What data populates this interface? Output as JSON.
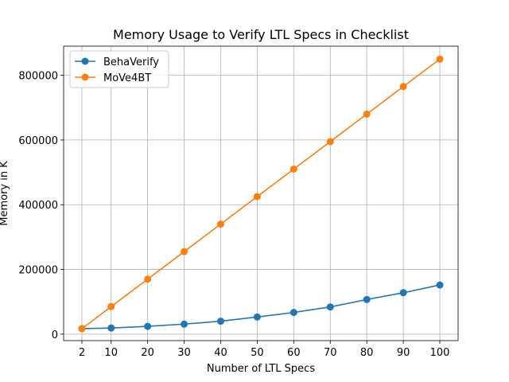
{
  "chart_data": {
    "type": "line",
    "title": "Memory Usage to Verify LTL Specs in Checklist",
    "xlabel": "Number of LTL Specs",
    "ylabel": "Memory in K",
    "x": [
      2,
      10,
      20,
      30,
      40,
      50,
      60,
      70,
      80,
      90,
      100
    ],
    "x_ticks": [
      "2",
      "10",
      "20",
      "30",
      "40",
      "50",
      "60",
      "70",
      "80",
      "90",
      "100"
    ],
    "y_ticks": [
      "0",
      "200000",
      "400000",
      "600000",
      "800000"
    ],
    "y_tick_values": [
      0,
      200000,
      400000,
      600000,
      800000
    ],
    "ylim": [
      -20000,
      890000
    ],
    "xlim": [
      -3,
      105
    ],
    "grid": true,
    "legend_placement": "upper-left",
    "series": [
      {
        "name": "BehaVerify",
        "color": "#1f77b4",
        "values": [
          17000,
          19000,
          24000,
          31000,
          40000,
          53000,
          67000,
          84000,
          107000,
          128000,
          152000
        ]
      },
      {
        "name": "MoVe4BT",
        "color": "#ff7f0e",
        "values": [
          17000,
          85000,
          170000,
          255000,
          340000,
          425000,
          510000,
          595000,
          680000,
          765000,
          850000
        ]
      }
    ]
  }
}
